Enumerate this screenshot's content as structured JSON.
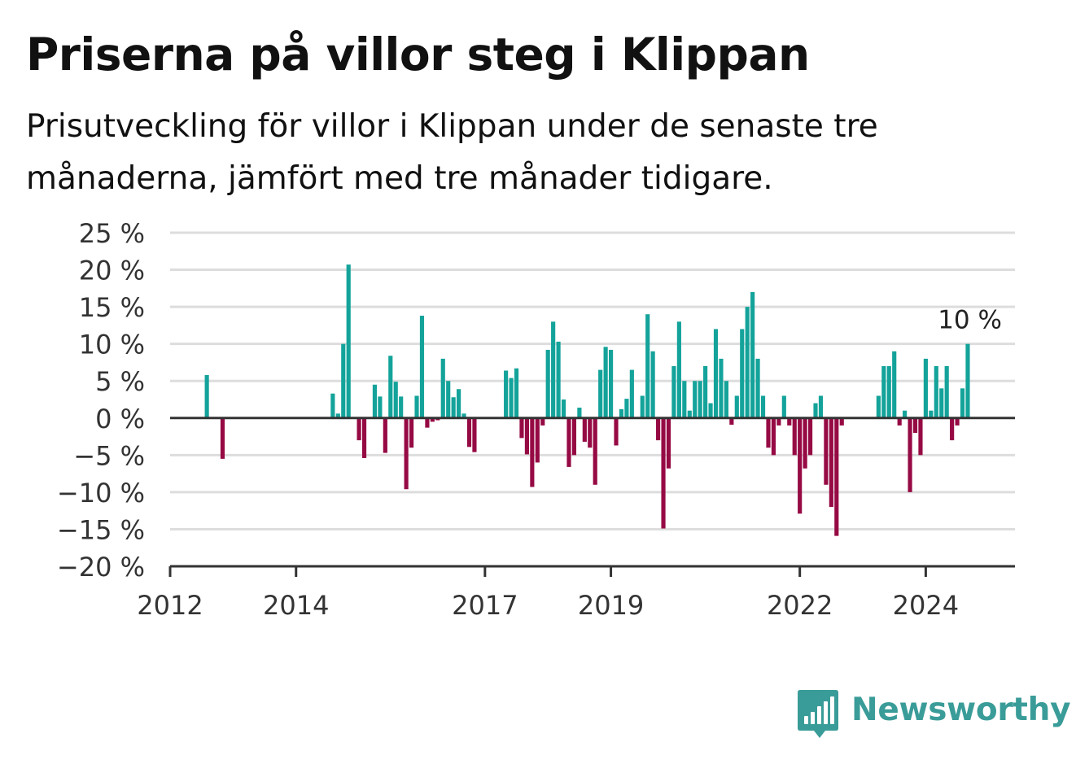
{
  "title": "Priserna på villor steg i Klippan",
  "subtitle": "Prisutveckling för villor i Klippan under de senaste tre månaderna, jämfört med tre månader tidigare.",
  "brand": {
    "name": "Newsworthy",
    "color": "#3a9c98",
    "icon": "newsworthy-logo-icon"
  },
  "colors": {
    "positive": "#14a39a",
    "negative": "#960a44",
    "grid": "#dddddd",
    "axis": "#333333"
  },
  "chart_data": {
    "type": "bar",
    "title": "Priserna på villor steg i Klippan",
    "subtitle": "Prisutveckling för villor i Klippan under de senaste tre månaderna, jämfört med tre månader tidigare.",
    "xlabel": "",
    "ylabel": "",
    "ylim": [
      -20,
      25
    ],
    "y_ticks": [
      25,
      20,
      15,
      10,
      5,
      0,
      -5,
      -10,
      -15,
      -20
    ],
    "y_tick_labels": [
      "25 %",
      "20 %",
      "15 %",
      "10 %",
      "5 %",
      "0 %",
      "−5 %",
      "−10 %",
      "−15 %",
      "−20 %"
    ],
    "x_ticks": [
      "2012",
      "2014",
      "2017",
      "2019",
      "2022",
      "2024"
    ],
    "grid": true,
    "legend": "none",
    "end_label": "10 %",
    "x_start": "2012-01",
    "x_end": "2025-06",
    "series": [
      {
        "points": [
          {
            "x": "2012-08",
            "y": 5.8
          },
          {
            "x": "2012-11",
            "y": -5.5
          },
          {
            "x": "2014-08",
            "y": 3.3
          },
          {
            "x": "2014-09",
            "y": 0.6
          },
          {
            "x": "2014-10",
            "y": 10.0
          },
          {
            "x": "2014-11",
            "y": 20.7
          },
          {
            "x": "2015-01",
            "y": -3.0
          },
          {
            "x": "2015-02",
            "y": -5.4
          },
          {
            "x": "2015-04",
            "y": 4.5
          },
          {
            "x": "2015-05",
            "y": 2.9
          },
          {
            "x": "2015-06",
            "y": -4.7
          },
          {
            "x": "2015-07",
            "y": 8.4
          },
          {
            "x": "2015-08",
            "y": 4.9
          },
          {
            "x": "2015-09",
            "y": 2.9
          },
          {
            "x": "2015-10",
            "y": -9.6
          },
          {
            "x": "2015-11",
            "y": -4.0
          },
          {
            "x": "2015-12",
            "y": 3.0
          },
          {
            "x": "2016-01",
            "y": 13.8
          },
          {
            "x": "2016-02",
            "y": -1.3
          },
          {
            "x": "2016-03",
            "y": -0.5
          },
          {
            "x": "2016-04",
            "y": -0.3
          },
          {
            "x": "2016-05",
            "y": 8.0
          },
          {
            "x": "2016-06",
            "y": 5.0
          },
          {
            "x": "2016-07",
            "y": 2.8
          },
          {
            "x": "2016-08",
            "y": 3.9
          },
          {
            "x": "2016-09",
            "y": 0.6
          },
          {
            "x": "2016-10",
            "y": -3.9
          },
          {
            "x": "2016-11",
            "y": -4.6
          },
          {
            "x": "2017-05",
            "y": 6.4
          },
          {
            "x": "2017-06",
            "y": 5.4
          },
          {
            "x": "2017-07",
            "y": 6.7
          },
          {
            "x": "2017-08",
            "y": -2.7
          },
          {
            "x": "2017-09",
            "y": -4.9
          },
          {
            "x": "2017-10",
            "y": -9.3
          },
          {
            "x": "2017-11",
            "y": -6.0
          },
          {
            "x": "2017-12",
            "y": -1.0
          },
          {
            "x": "2018-01",
            "y": 9.2
          },
          {
            "x": "2018-02",
            "y": 13.0
          },
          {
            "x": "2018-03",
            "y": 10.3
          },
          {
            "x": "2018-04",
            "y": 2.5
          },
          {
            "x": "2018-05",
            "y": -6.6
          },
          {
            "x": "2018-06",
            "y": -5.0
          },
          {
            "x": "2018-07",
            "y": 1.4
          },
          {
            "x": "2018-08",
            "y": -3.2
          },
          {
            "x": "2018-09",
            "y": -4.0
          },
          {
            "x": "2018-10",
            "y": -9.0
          },
          {
            "x": "2018-11",
            "y": 6.5
          },
          {
            "x": "2018-12",
            "y": 9.6
          },
          {
            "x": "2019-01",
            "y": 9.2
          },
          {
            "x": "2019-02",
            "y": -3.7
          },
          {
            "x": "2019-03",
            "y": 1.2
          },
          {
            "x": "2019-04",
            "y": 2.6
          },
          {
            "x": "2019-05",
            "y": 6.5
          },
          {
            "x": "2019-07",
            "y": 3.0
          },
          {
            "x": "2019-08",
            "y": 14.0
          },
          {
            "x": "2019-09",
            "y": 9.0
          },
          {
            "x": "2019-10",
            "y": -3.0
          },
          {
            "x": "2019-11",
            "y": -14.9
          },
          {
            "x": "2019-12",
            "y": -6.8
          },
          {
            "x": "2020-01",
            "y": 7.0
          },
          {
            "x": "2020-02",
            "y": 13.0
          },
          {
            "x": "2020-03",
            "y": 5.0
          },
          {
            "x": "2020-04",
            "y": 1.0
          },
          {
            "x": "2020-05",
            "y": 5.0
          },
          {
            "x": "2020-06",
            "y": 5.0
          },
          {
            "x": "2020-07",
            "y": 7.0
          },
          {
            "x": "2020-08",
            "y": 2.0
          },
          {
            "x": "2020-09",
            "y": 12.0
          },
          {
            "x": "2020-10",
            "y": 8.0
          },
          {
            "x": "2020-11",
            "y": 5.0
          },
          {
            "x": "2020-12",
            "y": -0.9
          },
          {
            "x": "2021-01",
            "y": 3.0
          },
          {
            "x": "2021-02",
            "y": 12.0
          },
          {
            "x": "2021-03",
            "y": 15.0
          },
          {
            "x": "2021-04",
            "y": 17.0
          },
          {
            "x": "2021-05",
            "y": 8.0
          },
          {
            "x": "2021-06",
            "y": 3.0
          },
          {
            "x": "2021-07",
            "y": -4.0
          },
          {
            "x": "2021-08",
            "y": -5.0
          },
          {
            "x": "2021-09",
            "y": -1.0
          },
          {
            "x": "2021-10",
            "y": 3.0
          },
          {
            "x": "2021-11",
            "y": -1.0
          },
          {
            "x": "2021-12",
            "y": -5.0
          },
          {
            "x": "2022-01",
            "y": -12.9
          },
          {
            "x": "2022-02",
            "y": -6.8
          },
          {
            "x": "2022-03",
            "y": -5.0
          },
          {
            "x": "2022-04",
            "y": 2.0
          },
          {
            "x": "2022-05",
            "y": 3.0
          },
          {
            "x": "2022-06",
            "y": -9.0
          },
          {
            "x": "2022-07",
            "y": -12.0
          },
          {
            "x": "2022-08",
            "y": -15.9
          },
          {
            "x": "2022-09",
            "y": -1.0
          },
          {
            "x": "2023-04",
            "y": 3.0
          },
          {
            "x": "2023-05",
            "y": 7.0
          },
          {
            "x": "2023-06",
            "y": 7.0
          },
          {
            "x": "2023-07",
            "y": 9.0
          },
          {
            "x": "2023-08",
            "y": -1.0
          },
          {
            "x": "2023-09",
            "y": 1.0
          },
          {
            "x": "2023-10",
            "y": -10.0
          },
          {
            "x": "2023-11",
            "y": -2.0
          },
          {
            "x": "2023-12",
            "y": -5.0
          },
          {
            "x": "2024-01",
            "y": 8.0
          },
          {
            "x": "2024-02",
            "y": 1.0
          },
          {
            "x": "2024-03",
            "y": 7.0
          },
          {
            "x": "2024-04",
            "y": 4.0
          },
          {
            "x": "2024-05",
            "y": 7.0
          },
          {
            "x": "2024-06",
            "y": -3.0
          },
          {
            "x": "2024-07",
            "y": -1.0
          },
          {
            "x": "2024-08",
            "y": 4.0
          },
          {
            "x": "2024-09",
            "y": 10.0
          }
        ]
      }
    ]
  }
}
